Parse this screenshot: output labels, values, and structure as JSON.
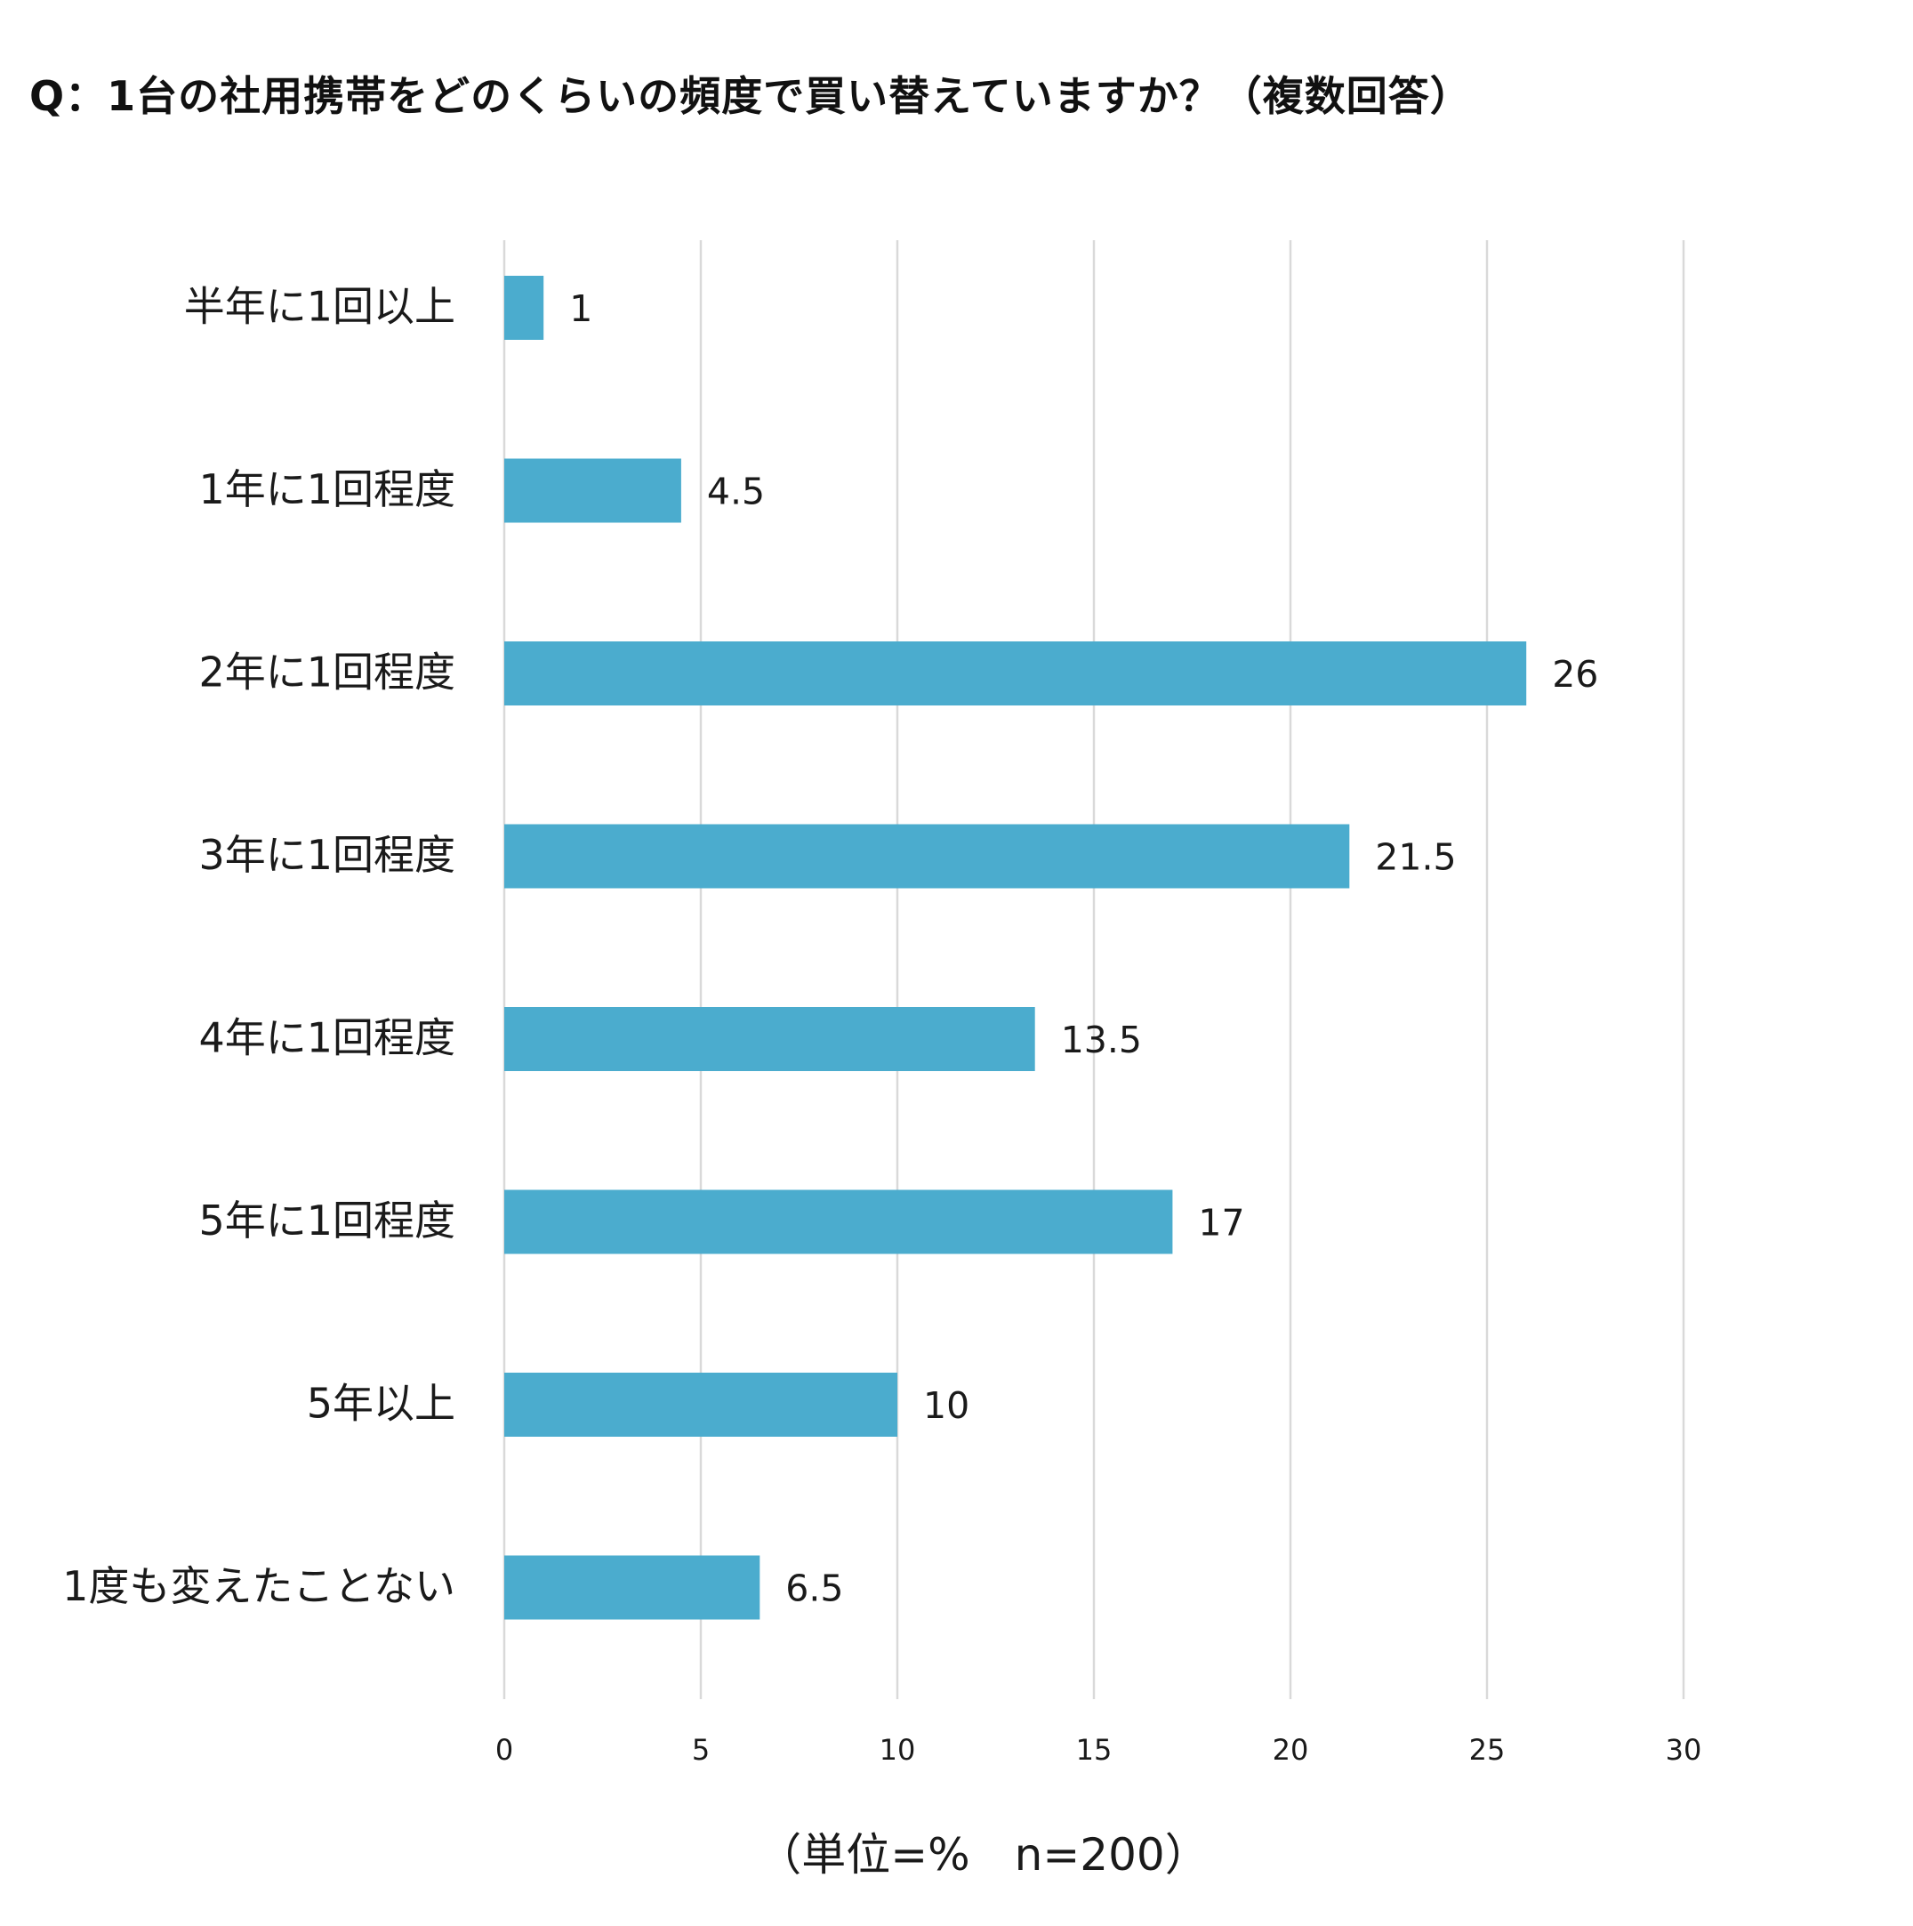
{
  "chart_data": {
    "type": "bar",
    "orientation": "horizontal",
    "title": "Q：1台の社用携帯をどのくらいの頻度で買い替えていますか？（複数回答）",
    "categories": [
      "半年に1回以上",
      "1年に1回程度",
      "2年に1回程度",
      "3年に1回程度",
      "4年に1回程度",
      "5年に1回程度",
      "5年以上",
      "1度も変えたことない"
    ],
    "values": [
      1,
      4.5,
      26,
      21.5,
      13.5,
      17,
      10,
      6.5
    ],
    "value_labels": [
      "1",
      "4.5",
      "26",
      "21.5",
      "13.5",
      "17",
      "10",
      "6.5"
    ],
    "xlim": [
      0,
      30
    ],
    "xticks": [
      0,
      5,
      10,
      15,
      20,
      25,
      30
    ],
    "xlabel": "（単位=%　n=200）",
    "ylabel": "",
    "grid": true,
    "bar_color": "#4bacce",
    "grid_color": "#d9d9d9"
  }
}
